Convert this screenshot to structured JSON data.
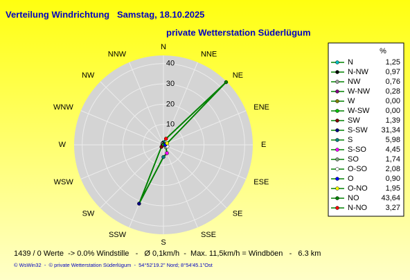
{
  "chart_data": {
    "type": "radar",
    "title": "Verteilung Windrichtung   Samstag, 18.10.2025",
    "subtitle": "private Wetterstation Süderlügum",
    "categories": [
      "N",
      "N-NW",
      "NW",
      "W-NW",
      "W",
      "W-SW",
      "SW",
      "S-SW",
      "S",
      "S-SO",
      "SO",
      "O-SO",
      "O",
      "O-NO",
      "NO",
      "N-NO"
    ],
    "values": [
      1.25,
      0.97,
      0.76,
      0.28,
      0.0,
      0.0,
      1.39,
      31.34,
      5.98,
      4.45,
      1.74,
      2.08,
      0.9,
      1.95,
      43.64,
      3.27
    ],
    "value_labels": [
      "1,25",
      "0,97",
      "0,76",
      "0,28",
      "0,00",
      "0,00",
      "1,39",
      "31,34",
      "5,98",
      "4,45",
      "1,74",
      "2,08",
      "0,90",
      "1,95",
      "43,64",
      "3,27"
    ],
    "colors": [
      "#00c0c0",
      "#000000",
      "#a0a0a0",
      "#800080",
      "#808000",
      "#00c000",
      "#800000",
      "#000080",
      "#008080",
      "#ff00ff",
      "#80a080",
      "#ffffff",
      "#0000ff",
      "#ffff00",
      "#008000",
      "#ff0000"
    ],
    "line_color": "#008000",
    "rlim": [
      0,
      44
    ],
    "rticks": [
      10,
      20,
      30,
      40
    ],
    "compass_labels": [
      "N",
      "NNE",
      "NE",
      "ENE",
      "E",
      "ESE",
      "SE",
      "SSE",
      "S",
      "SSW",
      "SW",
      "WSW",
      "W",
      "WNW",
      "NW",
      "NNW"
    ],
    "legend_title": "%",
    "footer": "1439 / 0 Werte  -> 0.0% Windstille   -   Ø 0,1km/h  -  Max. 11,5km/h = Windböen   -   6.3 km",
    "credit": "© WsWin32  -  © private Wetterstation Süderlügum  -  54°52'19.2\" Nord; 8°54'45.1\"Ost"
  }
}
